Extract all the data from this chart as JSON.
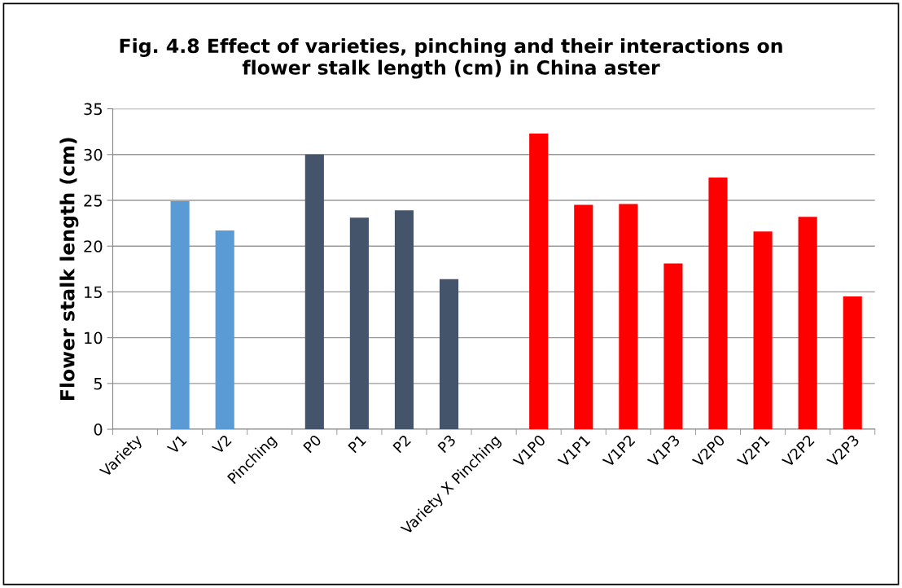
{
  "chart_data": {
    "type": "bar",
    "title": "Fig. 4.8 Effect of varieties, pinching and their interactions on\nflower stalk length (cm) in China aster",
    "ylabel": "Flower stalk length (cm)",
    "categories": [
      "Variety",
      "V1",
      "V2",
      "Pinching",
      "P0",
      "P1",
      "P2",
      "P3",
      "Variety X Pinching",
      "V1P0",
      "V1P1",
      "V1P2",
      "V1P3",
      "V2P0",
      "V2P1",
      "V2P2",
      "V2P3"
    ],
    "values": [
      null,
      24.9,
      21.7,
      null,
      30.0,
      23.1,
      23.9,
      16.4,
      null,
      32.3,
      24.5,
      24.6,
      18.1,
      27.5,
      21.6,
      23.2,
      14.5
    ],
    "colors": [
      "#5b9bd5",
      "#5b9bd5",
      "#5b9bd5",
      "#44546a",
      "#44546a",
      "#44546a",
      "#44546a",
      "#44546a",
      "#ff0000",
      "#ff0000",
      "#ff0000",
      "#ff0000",
      "#ff0000",
      "#ff0000",
      "#ff0000",
      "#ff0000",
      "#ff0000"
    ],
    "ylim": [
      0,
      35
    ],
    "yticks": [
      0,
      5,
      10,
      15,
      20,
      25,
      30,
      35
    ],
    "grid": "y",
    "legend": false
  }
}
